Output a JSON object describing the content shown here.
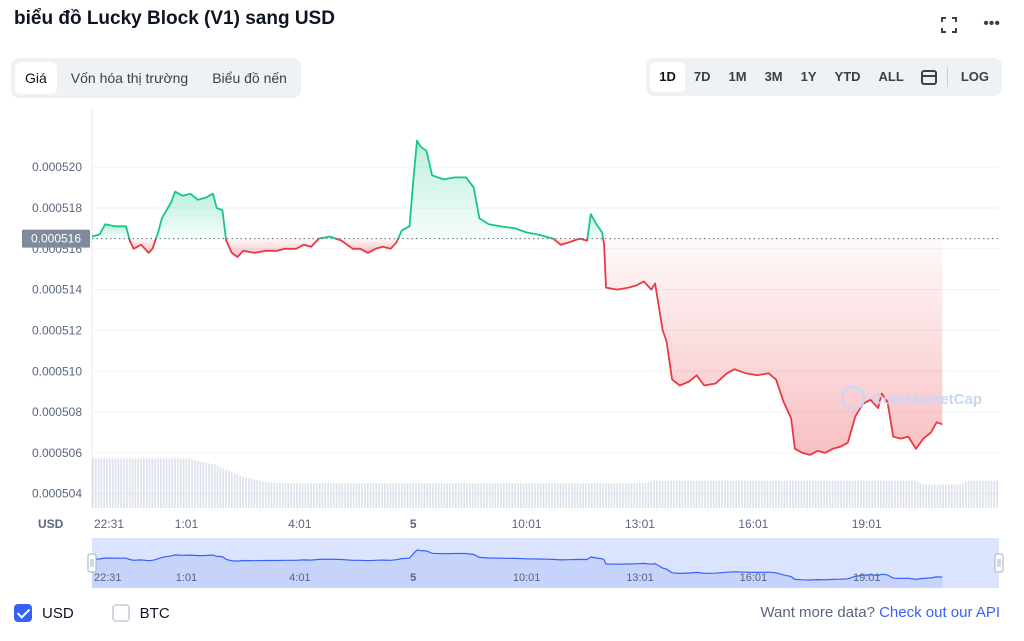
{
  "header": {
    "title": "biểu đồ Lucky Block (V1) sang USD",
    "more_label": "•••"
  },
  "tabs": [
    {
      "label": "Giá",
      "active": true
    },
    {
      "label": "Vốn hóa thị trường",
      "active": false
    },
    {
      "label": "Biểu đồ nến",
      "active": false
    }
  ],
  "ranges": [
    {
      "label": "1D",
      "active": true
    },
    {
      "label": "7D",
      "active": false
    },
    {
      "label": "1M",
      "active": false
    },
    {
      "label": "3M",
      "active": false
    },
    {
      "label": "1Y",
      "active": false
    },
    {
      "label": "YTD",
      "active": false
    },
    {
      "label": "ALL",
      "active": false
    }
  ],
  "log_label": "LOG",
  "watermark": "CoinMarketCap",
  "currency_label": "USD",
  "colors": {
    "up": "#16c784",
    "down": "#ea3943",
    "accent": "#3861fb",
    "nav_fill": "#dbe4ff",
    "nav_line": "#3861fb"
  },
  "chart_data": {
    "type": "line",
    "ylim": [
      0.0005033,
      0.0005228
    ],
    "yticks": [
      "0.000504",
      "0.000506",
      "0.000508",
      "0.000510",
      "0.000512",
      "0.000514",
      "0.000516",
      "0.000518",
      "0.000520"
    ],
    "ytick_values": [
      0.000504,
      0.000506,
      0.000508,
      0.00051,
      0.000512,
      0.000514,
      0.000516,
      0.000518,
      0.00052
    ],
    "baseline": 0.0005165,
    "baseline_label": "0.000516",
    "xtick_labels": [
      "22:31",
      "1:01",
      "4:01",
      "5",
      "10:01",
      "13:01",
      "16:01",
      "19:01"
    ],
    "xtick_positions": [
      0.0,
      2.5,
      5.5,
      8.5,
      11.5,
      14.5,
      17.5,
      20.5
    ],
    "x_max": 24.0,
    "series": [
      {
        "points": [
          [
            0.0,
            0.0005166
          ],
          [
            0.2,
            0.0005167
          ],
          [
            0.35,
            0.0005172
          ],
          [
            0.6,
            0.0005171
          ],
          [
            0.9,
            0.0005171
          ],
          [
            1.0,
            0.0005164
          ],
          [
            1.1,
            0.000516
          ],
          [
            1.3,
            0.0005162
          ],
          [
            1.5,
            0.0005158
          ],
          [
            1.6,
            0.000516
          ],
          [
            1.75,
            0.0005168
          ],
          [
            1.85,
            0.0005175
          ],
          [
            2.1,
            0.0005183
          ],
          [
            2.2,
            0.0005188
          ],
          [
            2.4,
            0.0005186
          ],
          [
            2.6,
            0.0005187
          ],
          [
            2.8,
            0.0005184
          ],
          [
            3.0,
            0.0005185
          ],
          [
            3.2,
            0.0005187
          ],
          [
            3.3,
            0.000518
          ],
          [
            3.45,
            0.0005179
          ],
          [
            3.55,
            0.0005164
          ],
          [
            3.7,
            0.0005158
          ],
          [
            3.85,
            0.0005156
          ],
          [
            4.0,
            0.0005159
          ],
          [
            4.3,
            0.0005158
          ],
          [
            4.6,
            0.0005159
          ],
          [
            4.9,
            0.0005159
          ],
          [
            5.1,
            0.000516
          ],
          [
            5.4,
            0.000516
          ],
          [
            5.6,
            0.0005162
          ],
          [
            5.8,
            0.0005161
          ],
          [
            6.0,
            0.0005165
          ],
          [
            6.3,
            0.0005166
          ],
          [
            6.6,
            0.0005164
          ],
          [
            6.9,
            0.000516
          ],
          [
            7.1,
            0.000516
          ],
          [
            7.3,
            0.0005158
          ],
          [
            7.5,
            0.000516
          ],
          [
            7.7,
            0.0005161
          ],
          [
            7.9,
            0.000516
          ],
          [
            8.05,
            0.0005163
          ],
          [
            8.2,
            0.0005169
          ],
          [
            8.4,
            0.0005171
          ],
          [
            8.5,
            0.0005193
          ],
          [
            8.6,
            0.0005213
          ],
          [
            8.7,
            0.000521
          ],
          [
            8.85,
            0.0005208
          ],
          [
            9.0,
            0.0005196
          ],
          [
            9.3,
            0.0005194
          ],
          [
            9.6,
            0.0005195
          ],
          [
            9.9,
            0.0005195
          ],
          [
            10.1,
            0.000519
          ],
          [
            10.25,
            0.0005175
          ],
          [
            10.5,
            0.0005172
          ],
          [
            10.8,
            0.0005171
          ],
          [
            11.2,
            0.000517
          ],
          [
            11.5,
            0.0005168
          ],
          [
            11.8,
            0.0005167
          ],
          [
            12.0,
            0.0005166
          ],
          [
            12.2,
            0.0005165
          ],
          [
            12.4,
            0.0005162
          ],
          [
            12.6,
            0.0005163
          ],
          [
            12.9,
            0.0005165
          ],
          [
            13.1,
            0.0005164
          ],
          [
            13.2,
            0.0005177
          ],
          [
            13.35,
            0.0005172
          ],
          [
            13.5,
            0.0005168
          ],
          [
            13.55,
            0.0005162
          ],
          [
            13.6,
            0.0005141
          ],
          [
            13.9,
            0.000514
          ],
          [
            14.2,
            0.0005141
          ],
          [
            14.4,
            0.0005142
          ],
          [
            14.6,
            0.0005144
          ],
          [
            14.8,
            0.000514
          ],
          [
            14.9,
            0.0005143
          ],
          [
            15.1,
            0.000512
          ],
          [
            15.2,
            0.0005115
          ],
          [
            15.35,
            0.0005096
          ],
          [
            15.55,
            0.0005093
          ],
          [
            15.8,
            0.0005095
          ],
          [
            16.0,
            0.0005098
          ],
          [
            16.2,
            0.0005093
          ],
          [
            16.5,
            0.0005094
          ],
          [
            16.8,
            0.0005099
          ],
          [
            17.0,
            0.0005101
          ],
          [
            17.3,
            0.0005099
          ],
          [
            17.6,
            0.0005098
          ],
          [
            17.9,
            0.0005099
          ],
          [
            18.1,
            0.0005096
          ],
          [
            18.3,
            0.0005085
          ],
          [
            18.5,
            0.0005077
          ],
          [
            18.6,
            0.0005062
          ],
          [
            18.8,
            0.000506
          ],
          [
            19.0,
            0.0005059
          ],
          [
            19.2,
            0.0005061
          ],
          [
            19.4,
            0.000506
          ],
          [
            19.6,
            0.0005062
          ],
          [
            19.8,
            0.0005063
          ],
          [
            20.0,
            0.0005065
          ],
          [
            20.2,
            0.0005078
          ],
          [
            20.4,
            0.0005084
          ],
          [
            20.6,
            0.0005086
          ],
          [
            20.8,
            0.0005082
          ],
          [
            20.9,
            0.0005089
          ],
          [
            21.05,
            0.0005085
          ],
          [
            21.2,
            0.0005068
          ],
          [
            21.4,
            0.0005067
          ],
          [
            21.6,
            0.0005068
          ],
          [
            21.8,
            0.0005062
          ],
          [
            22.0,
            0.0005067
          ],
          [
            22.2,
            0.000507
          ],
          [
            22.35,
            0.0005075
          ],
          [
            22.5,
            0.0005074
          ]
        ]
      }
    ]
  },
  "volume_data": [
    0.8,
    0.8,
    0.8,
    0.8,
    0.8,
    0.8,
    0.8,
    0.8,
    0.8,
    0.8,
    0.8,
    0.8,
    0.8,
    0.8,
    0.8,
    0.8,
    0.8,
    0.8,
    0.8,
    0.8,
    0.8,
    0.8,
    0.8,
    0.8,
    0.8,
    0.8,
    0.8,
    0.8,
    0.8,
    0.8,
    0.8,
    0.8,
    0.8,
    0.8,
    0.8,
    0.78,
    0.77,
    0.76,
    0.75,
    0.74,
    0.73,
    0.72,
    0.71,
    0.7,
    0.68,
    0.66,
    0.64,
    0.62,
    0.6,
    0.58,
    0.56,
    0.54,
    0.52,
    0.5,
    0.49,
    0.48,
    0.47,
    0.46,
    0.45,
    0.44,
    0.43,
    0.42,
    0.42,
    0.41,
    0.41,
    0.4,
    0.4,
    0.4,
    0.4,
    0.4,
    0.4,
    0.4,
    0.4,
    0.4,
    0.4,
    0.4,
    0.4,
    0.4,
    0.4,
    0.4,
    0.4,
    0.4,
    0.4,
    0.4,
    0.4,
    0.4,
    0.4,
    0.4,
    0.4,
    0.4,
    0.4,
    0.4,
    0.4,
    0.4,
    0.4,
    0.4,
    0.4,
    0.4,
    0.4,
    0.4,
    0.4,
    0.4,
    0.4,
    0.4,
    0.4,
    0.4,
    0.4,
    0.4,
    0.4,
    0.4,
    0.4,
    0.4,
    0.4,
    0.4,
    0.4,
    0.4,
    0.4,
    0.4,
    0.4,
    0.4,
    0.4,
    0.4,
    0.4,
    0.4,
    0.4,
    0.4,
    0.4,
    0.4,
    0.4,
    0.4,
    0.4,
    0.4,
    0.4,
    0.4,
    0.4,
    0.4,
    0.4,
    0.4,
    0.4,
    0.4,
    0.4,
    0.4,
    0.4,
    0.4,
    0.4,
    0.4,
    0.4,
    0.4,
    0.4,
    0.4,
    0.4,
    0.4,
    0.4,
    0.4,
    0.4,
    0.4,
    0.4,
    0.4,
    0.4,
    0.4,
    0.4,
    0.4,
    0.4,
    0.4,
    0.4,
    0.4,
    0.4,
    0.4,
    0.4,
    0.4,
    0.4,
    0.4,
    0.4,
    0.4,
    0.4,
    0.4,
    0.4,
    0.4,
    0.4,
    0.4,
    0.4,
    0.4,
    0.4,
    0.4,
    0.4,
    0.4,
    0.4,
    0.4,
    0.4,
    0.4,
    0.4,
    0.4,
    0.4,
    0.4,
    0.4,
    0.41,
    0.42,
    0.43,
    0.44,
    0.44,
    0.44,
    0.44,
    0.44,
    0.44,
    0.44,
    0.44,
    0.44,
    0.44,
    0.44,
    0.44,
    0.44,
    0.44,
    0.44,
    0.44,
    0.44,
    0.44,
    0.44,
    0.44,
    0.44,
    0.44,
    0.44,
    0.44,
    0.44,
    0.44,
    0.44,
    0.44,
    0.44,
    0.44,
    0.44,
    0.44,
    0.44,
    0.44,
    0.44,
    0.44,
    0.44,
    0.44,
    0.44,
    0.44,
    0.44,
    0.44,
    0.44,
    0.44,
    0.44,
    0.44,
    0.44,
    0.44,
    0.44,
    0.44,
    0.44,
    0.44,
    0.44,
    0.44,
    0.44,
    0.44,
    0.44,
    0.44,
    0.44,
    0.44,
    0.44,
    0.44,
    0.44,
    0.44,
    0.44,
    0.44,
    0.44,
    0.44,
    0.44,
    0.44,
    0.44,
    0.44,
    0.44,
    0.44,
    0.44,
    0.44,
    0.44,
    0.44,
    0.44,
    0.44,
    0.44,
    0.44,
    0.44,
    0.44,
    0.44,
    0.44,
    0.44,
    0.44,
    0.44,
    0.44,
    0.44,
    0.44,
    0.44,
    0.42,
    0.4,
    0.38,
    0.38,
    0.38,
    0.38,
    0.38,
    0.38,
    0.38,
    0.38,
    0.38,
    0.38,
    0.38,
    0.38,
    0.38,
    0.38,
    0.4,
    0.42,
    0.44,
    0.44,
    0.44,
    0.44,
    0.44,
    0.44,
    0.44,
    0.44,
    0.44,
    0.44,
    0.44
  ],
  "footer": {
    "usd_label": "USD",
    "btc_label": "BTC",
    "api_prefix": "Want more data?",
    "api_link": "Check out our API"
  }
}
